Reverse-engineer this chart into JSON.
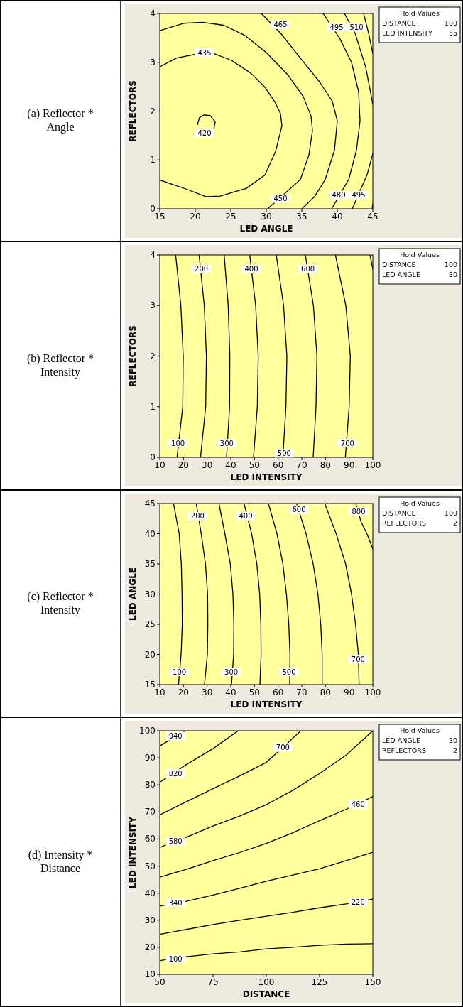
{
  "chart_data": [
    {
      "type": "line",
      "title": "(a) Reflector * Angle",
      "xlabel": "LED ANGLE",
      "ylabel": "REFLECTORS",
      "xlim": [
        15,
        45
      ],
      "ylim": [
        0,
        4
      ],
      "xticks": [
        15,
        20,
        25,
        30,
        35,
        40,
        45
      ],
      "yticks": [
        0,
        1,
        2,
        3,
        4
      ],
      "series": [
        {
          "color": "#000000",
          "x": [
            20.3,
            20.6,
            21.2,
            22.1,
            22.8,
            22.6
          ],
          "values": [
            1.72,
            1.87,
            1.92,
            1.91,
            1.78,
            1.62
          ]
        },
        {
          "color": "#000000",
          "x": [
            15,
            17.4,
            21.3,
            22.6,
            25.1,
            27.8,
            29.8,
            31.2,
            32,
            32.2,
            31.3,
            29.8,
            27.2,
            23.5,
            21.5,
            18.8,
            15
          ],
          "values": [
            2.91,
            3.09,
            3.2,
            3.18,
            3.04,
            2.78,
            2.49,
            2.19,
            1.95,
            1.7,
            1.17,
            0.69,
            0.42,
            0.26,
            0.25,
            0.4,
            0.59
          ]
        },
        {
          "color": "#000000",
          "x": [
            15,
            18.4,
            21,
            24,
            27,
            30,
            33,
            35.2,
            36.3,
            36.5,
            36,
            34.8,
            30.2
          ],
          "values": [
            3.65,
            3.8,
            3.82,
            3.76,
            3.55,
            3.2,
            2.75,
            2.3,
            1.9,
            1.6,
            1.1,
            0.6,
            0
          ]
        },
        {
          "color": "#000000",
          "x": [
            29.3,
            32,
            35,
            37.5,
            39.3,
            40,
            39.6,
            38.3,
            36.8,
            35
          ],
          "values": [
            4,
            3.6,
            3.05,
            2.6,
            2.2,
            1.8,
            1.2,
            0.6,
            0.25,
            0
          ]
        },
        {
          "color": "#000000",
          "x": [
            38,
            40.3,
            42,
            43,
            43.2,
            42.7,
            41.6,
            39.2
          ],
          "values": [
            4,
            3.5,
            3,
            2.4,
            1.8,
            1.2,
            0.6,
            0
          ]
        },
        {
          "color": "#000000",
          "x": [
            41,
            42.5,
            44,
            45
          ],
          "values": [
            4,
            3.6,
            2.9,
            2.14
          ]
        },
        {
          "color": "#000000",
          "x": [
            45,
            44.2,
            43,
            42.1
          ],
          "values": [
            1.13,
            0.7,
            0.3,
            0
          ]
        },
        {
          "color": "#000000",
          "x": [
            43.7,
            44.4,
            45
          ],
          "values": [
            4,
            3.6,
            3.18
          ]
        },
        {
          "color": "#000000",
          "x": [
            45,
            44.9
          ],
          "values": [
            0.1,
            0
          ]
        }
      ],
      "annotations": [
        "Hold Values",
        "DISTANCE",
        "100",
        "LED INTENSITY",
        "55",
        {
          "text": "420",
          "x": 21.3,
          "y": 1.55
        },
        {
          "text": "435",
          "x": 21.3,
          "y": 3.2
        },
        {
          "text": "450",
          "x": 32,
          "y": 0.21
        },
        {
          "text": "465",
          "x": 32,
          "y": 3.77
        },
        {
          "text": "480",
          "x": 40.2,
          "y": 0.28
        },
        {
          "text": "495",
          "x": 43,
          "y": 0.28
        },
        {
          "text": "495",
          "x": 39.9,
          "y": 3.72
        },
        {
          "text": "510",
          "x": 42.7,
          "y": 3.72
        }
      ]
    },
    {
      "type": "line",
      "title": "(b) Reflector * Intensity",
      "xlabel": "LED INTENSITY",
      "ylabel": "REFLECTORS",
      "xlim": [
        10,
        100
      ],
      "ylim": [
        0,
        4
      ],
      "xticks": [
        10,
        20,
        30,
        40,
        50,
        60,
        70,
        80,
        90,
        100
      ],
      "yticks": [
        0,
        1,
        2,
        3,
        4
      ],
      "series": [
        {
          "color": "#000000",
          "x": [
            16.7,
            18.9,
            19.9,
            19.7,
            17.3
          ],
          "values": [
            4,
            3,
            2,
            1,
            0
          ]
        },
        {
          "color": "#000000",
          "x": [
            26.6,
            28.8,
            29.7,
            29.4,
            27.2
          ],
          "values": [
            4,
            3,
            2,
            1,
            0
          ]
        },
        {
          "color": "#000000",
          "x": [
            37.2,
            38.9,
            39.6,
            39.5,
            38.2
          ],
          "values": [
            4,
            3,
            2,
            1,
            0
          ]
        },
        {
          "color": "#000000",
          "x": [
            48,
            50.5,
            51.6,
            51.2,
            49.6
          ],
          "values": [
            4,
            3,
            2,
            1,
            0
          ]
        },
        {
          "color": "#000000",
          "x": [
            59.2,
            62.3,
            63.7,
            63.3,
            62
          ],
          "values": [
            4,
            3,
            2,
            1,
            0
          ]
        },
        {
          "color": "#000000",
          "x": [
            71.5,
            74.9,
            76.4,
            76,
            74.8
          ],
          "values": [
            4,
            3,
            2,
            1,
            0
          ]
        },
        {
          "color": "#000000",
          "x": [
            84.2,
            88.6,
            90.5,
            90,
            88.4
          ],
          "values": [
            4,
            3,
            2,
            1,
            0
          ]
        },
        {
          "color": "#000000",
          "x": [
            98.8,
            100
          ],
          "values": [
            4,
            3.72
          ]
        }
      ],
      "annotations": [
        "Hold Values",
        "DISTANCE",
        "100",
        "LED ANGLE",
        "30",
        {
          "text": "100",
          "x": 17.7,
          "y": 0.28
        },
        {
          "text": "200",
          "x": 27.6,
          "y": 3.72
        },
        {
          "text": "300",
          "x": 38.3,
          "y": 0.28
        },
        {
          "text": "400",
          "x": 48.7,
          "y": 3.72
        },
        {
          "text": "500",
          "x": 62.6,
          "y": 0.08
        },
        {
          "text": "600",
          "x": 72.6,
          "y": 3.72
        },
        {
          "text": "700",
          "x": 89.3,
          "y": 0.28
        }
      ]
    },
    {
      "type": "line",
      "title": "(c) Reflector * Intensity",
      "xlabel": "LED INTENSITY",
      "ylabel": "LED ANGLE",
      "xlim": [
        10,
        100
      ],
      "ylim": [
        15,
        45
      ],
      "xticks": [
        10,
        20,
        30,
        40,
        50,
        60,
        70,
        80,
        90,
        100
      ],
      "yticks": [
        15,
        20,
        25,
        30,
        35,
        40,
        45
      ],
      "series": [
        {
          "color": "#000000",
          "x": [
            15.8,
            18.2,
            19.1,
            19.4,
            19.5,
            19,
            17.9
          ],
          "values": [
            45,
            40,
            35,
            30,
            25,
            20,
            15
          ]
        },
        {
          "color": "#000000",
          "x": [
            25.4,
            27.5,
            29.3,
            30.2,
            30.3,
            30.1,
            28.9
          ],
          "values": [
            45,
            40,
            35,
            30,
            25,
            20,
            15
          ]
        },
        {
          "color": "#000000",
          "x": [
            35,
            37.5,
            39.8,
            40.9,
            41.3,
            41.2,
            40.3
          ],
          "values": [
            45,
            40,
            35,
            30,
            25,
            20,
            15
          ]
        },
        {
          "color": "#000000",
          "x": [
            45.6,
            48.8,
            51,
            52.2,
            52.7,
            52.8,
            52.3
          ],
          "values": [
            45,
            40,
            35,
            30,
            25,
            20,
            15
          ]
        },
        {
          "color": "#000000",
          "x": [
            55.9,
            59.5,
            62,
            63.5,
            64.5,
            65,
            64.9
          ],
          "values": [
            45,
            40,
            35,
            30,
            25,
            20,
            15
          ]
        },
        {
          "color": "#000000",
          "x": [
            67.8,
            71.8,
            74.8,
            76.8,
            78,
            78.6,
            78.6
          ],
          "values": [
            45,
            40,
            35,
            30,
            25,
            20,
            15
          ]
        },
        {
          "color": "#000000",
          "x": [
            79.7,
            84.5,
            88.5,
            91,
            92.7,
            93.9,
            94.2
          ],
          "values": [
            45,
            40,
            35,
            30,
            25,
            20,
            15
          ]
        },
        {
          "color": "#000000",
          "x": [
            92.8,
            95,
            97.5,
            100
          ],
          "values": [
            45,
            42,
            40,
            37.5
          ]
        }
      ],
      "annotations": [
        "Hold Values",
        "DISTANCE",
        "100",
        "REFLECTORS",
        "2",
        {
          "text": "100",
          "x": 18.3,
          "y": 17.1
        },
        {
          "text": "200",
          "x": 26,
          "y": 42.9
        },
        {
          "text": "300",
          "x": 40.2,
          "y": 17.1
        },
        {
          "text": "400",
          "x": 46.3,
          "y": 42.9
        },
        {
          "text": "500",
          "x": 64.6,
          "y": 17.1
        },
        {
          "text": "600",
          "x": 68.8,
          "y": 44
        },
        {
          "text": "700",
          "x": 93.8,
          "y": 19.2
        },
        {
          "text": "800",
          "x": 94,
          "y": 43.7
        }
      ]
    },
    {
      "type": "line",
      "title": "(d) Intensity * Distance",
      "xlabel": "DISTANCE",
      "ylabel": "LED INTENSITY",
      "xlim": [
        50,
        150
      ],
      "ylim": [
        10,
        100
      ],
      "xticks": [
        50,
        75,
        100,
        125,
        150
      ],
      "yticks": [
        10,
        20,
        30,
        40,
        50,
        60,
        70,
        80,
        90,
        100
      ],
      "series": [
        {
          "color": "#000000",
          "x": [
            50,
            62.5,
            75,
            87.5,
            100,
            112.5,
            125,
            137.5,
            150
          ],
          "values": [
            15.1,
            16.5,
            17.6,
            18.3,
            19.4,
            20,
            20.7,
            21.2,
            21.3
          ]
        },
        {
          "color": "#000000",
          "x": [
            50,
            62.5,
            75,
            87.5,
            100,
            112.5,
            125,
            137.5,
            150
          ],
          "values": [
            24.8,
            26.6,
            28.4,
            30,
            31.5,
            32.9,
            34.6,
            36,
            37.8
          ]
        },
        {
          "color": "#000000",
          "x": [
            50,
            62.5,
            75,
            87.5,
            100,
            112.5,
            125,
            137.5,
            150
          ],
          "values": [
            35.2,
            37,
            39.3,
            41.8,
            44.4,
            46.7,
            49,
            52,
            55.1
          ]
        },
        {
          "color": "#000000",
          "x": [
            50,
            62.5,
            75,
            87.5,
            100,
            112.5,
            125,
            137.5,
            150
          ],
          "values": [
            45.9,
            48.8,
            52,
            55,
            58.4,
            62.3,
            66.8,
            71,
            75.7
          ]
        },
        {
          "color": "#000000",
          "x": [
            50,
            62.5,
            75,
            87.5,
            100,
            112.5,
            125,
            137.5,
            150
          ],
          "values": [
            56.9,
            60.7,
            64.8,
            68.5,
            72.7,
            78,
            84.2,
            91,
            100
          ]
        },
        {
          "color": "#000000",
          "x": [
            50,
            62.5,
            75,
            87.5,
            100,
            108,
            116.2
          ],
          "values": [
            68.9,
            73.8,
            78.6,
            83.3,
            88.3,
            94,
            100
          ]
        },
        {
          "color": "#000000",
          "x": [
            50,
            62.5,
            75,
            86.8
          ],
          "values": [
            81,
            87.5,
            93.4,
            100
          ]
        },
        {
          "color": "#000000",
          "x": [
            50,
            62
          ],
          "values": [
            94.4,
            100
          ]
        }
      ],
      "annotations": [
        "Hold Values",
        "LED ANGLE",
        "30",
        "REFLECTORS",
        "2",
        {
          "text": "940",
          "x": 57.4,
          "y": 98
        },
        {
          "text": "820",
          "x": 57.4,
          "y": 84.2
        },
        {
          "text": "700",
          "x": 107.8,
          "y": 93.9
        },
        {
          "text": "580",
          "x": 57.4,
          "y": 59.1
        },
        {
          "text": "460",
          "x": 143.1,
          "y": 72.8
        },
        {
          "text": "340",
          "x": 57.4,
          "y": 36.5
        },
        {
          "text": "220",
          "x": 143.1,
          "y": 36.7
        },
        {
          "text": "100",
          "x": 57.4,
          "y": 15.6
        }
      ]
    }
  ]
}
